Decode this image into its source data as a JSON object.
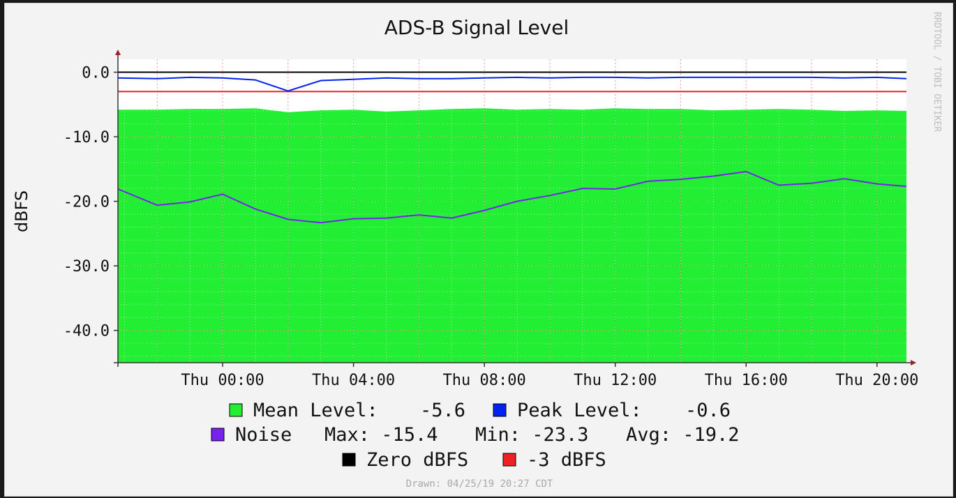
{
  "chart_data": {
    "type": "area",
    "title": "ADS-B Signal Level",
    "ylabel": "dBFS",
    "xlabel": "",
    "watermark": "RRDTOOL / TOBI OETIKER",
    "ylim": [
      -45,
      2
    ],
    "yticks": [
      0,
      -10,
      -20,
      -30,
      -40
    ],
    "ytick_labels": [
      "0.0",
      "-10.0",
      "-20.0",
      "-30.0",
      "-40.0"
    ],
    "x_range_hours": [
      -3.2,
      20.9
    ],
    "xticks_hours": [
      0,
      4,
      8,
      12,
      16,
      20
    ],
    "xtick_labels": [
      "Thu 00:00",
      "Thu 04:00",
      "Thu 08:00",
      "Thu 12:00",
      "Thu 16:00",
      "Thu 20:00"
    ],
    "grid": true,
    "x": [
      -3.2,
      -2.0,
      -1.0,
      0.0,
      1.0,
      2.0,
      3.0,
      4.0,
      5.0,
      6.0,
      7.0,
      8.0,
      9.0,
      10.0,
      11.0,
      12.0,
      13.0,
      14.0,
      15.0,
      16.0,
      17.0,
      18.0,
      19.0,
      20.0,
      20.9
    ],
    "series": [
      {
        "name": "Mean Level:",
        "color": "#22ee33",
        "style": "area",
        "values": [
          -5.8,
          -5.8,
          -5.7,
          -5.7,
          -5.6,
          -6.2,
          -5.9,
          -5.8,
          -6.1,
          -5.9,
          -5.7,
          -5.6,
          -5.8,
          -5.7,
          -5.8,
          -5.6,
          -5.7,
          -5.7,
          -5.9,
          -5.8,
          -5.7,
          -5.8,
          -6.0,
          -5.9,
          -6.0
        ]
      },
      {
        "name": "Peak Level:",
        "color": "#0022ee",
        "style": "line",
        "values": [
          -0.9,
          -1.0,
          -0.8,
          -0.9,
          -1.2,
          -2.9,
          -1.3,
          -1.1,
          -0.9,
          -1.0,
          -1.0,
          -0.9,
          -0.8,
          -0.9,
          -0.8,
          -0.8,
          -0.9,
          -0.8,
          -0.8,
          -0.8,
          -0.8,
          -0.8,
          -0.9,
          -0.8,
          -1.0
        ]
      },
      {
        "name": "Noise",
        "color": "#7722ee",
        "style": "line",
        "values": [
          -18.1,
          -20.6,
          -20.1,
          -18.9,
          -21.2,
          -22.8,
          -23.3,
          -22.7,
          -22.6,
          -22.1,
          -22.6,
          -21.4,
          -20.0,
          -19.1,
          -18.0,
          -18.1,
          -16.9,
          -16.6,
          -16.1,
          -15.4,
          -17.5,
          -17.2,
          -16.5,
          -17.3,
          -17.7
        ]
      }
    ],
    "hlines": [
      {
        "name": "Zero dBFS",
        "value": 0,
        "color": "#000000"
      },
      {
        "name": "-3 dBFS",
        "value": -3,
        "color": "#ee2222"
      }
    ]
  },
  "legend": {
    "row1": {
      "mean_label": "Mean Level:",
      "mean_value": "-5.6",
      "peak_label": "Peak Level:",
      "peak_value": "-0.6"
    },
    "row2": {
      "noise_label": "Noise",
      "max_text": "Max: -15.4",
      "min_text": "Min: -23.3",
      "avg_text": "Avg: -19.2"
    },
    "row3": {
      "zero_label": "Zero dBFS",
      "minus3_label": "-3 dBFS"
    },
    "colors": {
      "mean": "#22ee33",
      "peak": "#0022ee",
      "noise": "#7722ee",
      "zero": "#000000",
      "minus3": "#ee2222"
    }
  },
  "footer": {
    "drawn": "Drawn: 04/25/19 20:27 CDT"
  }
}
